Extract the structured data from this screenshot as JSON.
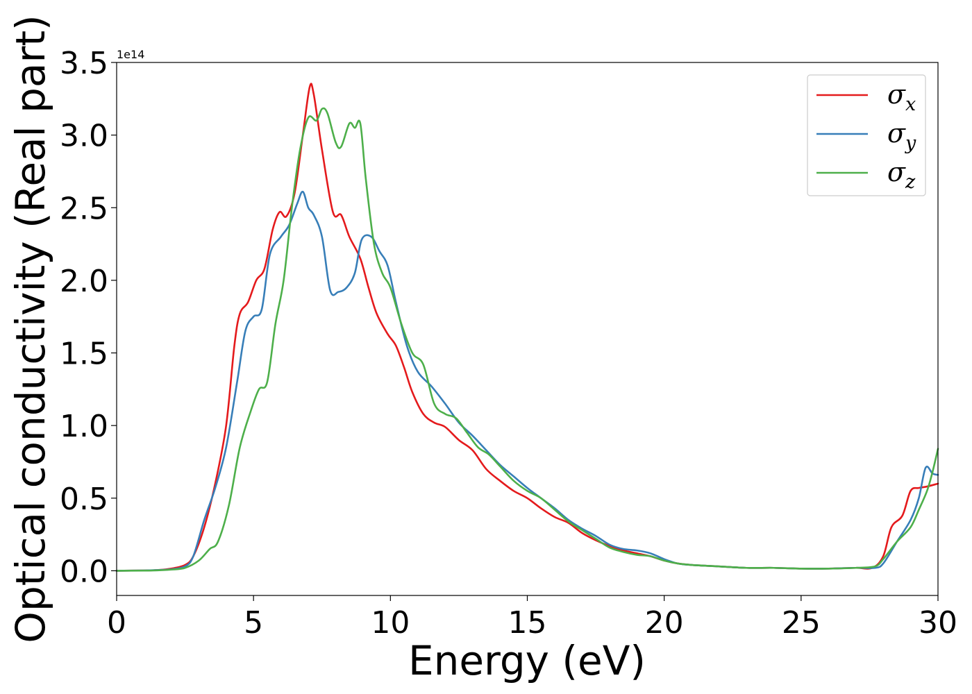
{
  "chart_data": {
    "type": "line",
    "title": "",
    "xlabel": "Energy (eV)",
    "ylabel": "Optical conductivity (Real part)",
    "y_scale_label": "1e14",
    "xlim": [
      0,
      30
    ],
    "ylim": [
      -0.17,
      3.5
    ],
    "xticks": [
      0,
      5,
      10,
      15,
      20,
      25,
      30
    ],
    "xtick_labels": [
      "0",
      "5",
      "10",
      "15",
      "20",
      "25",
      "30"
    ],
    "yticks": [
      0.0,
      0.5,
      1.0,
      1.5,
      2.0,
      2.5,
      3.0,
      3.5
    ],
    "ytick_labels": [
      "0.0",
      "0.5",
      "1.0",
      "1.5",
      "2.0",
      "2.5",
      "3.0",
      "3.5"
    ],
    "grid": false,
    "legend_position": "top-right",
    "series": [
      {
        "name": "σ",
        "subscript": "x",
        "color": "#e41a1c",
        "points": [
          [
            0,
            0
          ],
          [
            1,
            0.002
          ],
          [
            1.5,
            0.005
          ],
          [
            2,
            0.015
          ],
          [
            2.5,
            0.04
          ],
          [
            2.8,
            0.1
          ],
          [
            3.2,
            0.3
          ],
          [
            3.6,
            0.6
          ],
          [
            4,
            1.0
          ],
          [
            4.3,
            1.55
          ],
          [
            4.5,
            1.77
          ],
          [
            4.8,
            1.85
          ],
          [
            5.1,
            2.0
          ],
          [
            5.4,
            2.08
          ],
          [
            5.7,
            2.35
          ],
          [
            5.95,
            2.47
          ],
          [
            6.2,
            2.44
          ],
          [
            6.5,
            2.6
          ],
          [
            6.8,
            3.0
          ],
          [
            7.05,
            3.33
          ],
          [
            7.2,
            3.28
          ],
          [
            7.5,
            2.9
          ],
          [
            7.9,
            2.47
          ],
          [
            8.2,
            2.45
          ],
          [
            8.5,
            2.3
          ],
          [
            8.9,
            2.15
          ],
          [
            9.2,
            1.95
          ],
          [
            9.5,
            1.77
          ],
          [
            9.9,
            1.63
          ],
          [
            10.2,
            1.55
          ],
          [
            10.5,
            1.4
          ],
          [
            10.8,
            1.23
          ],
          [
            11.2,
            1.08
          ],
          [
            11.6,
            1.02
          ],
          [
            12,
            0.99
          ],
          [
            12.5,
            0.9
          ],
          [
            13,
            0.83
          ],
          [
            13.5,
            0.7
          ],
          [
            14,
            0.62
          ],
          [
            14.5,
            0.55
          ],
          [
            15,
            0.5
          ],
          [
            15.5,
            0.43
          ],
          [
            16,
            0.37
          ],
          [
            16.5,
            0.33
          ],
          [
            17,
            0.26
          ],
          [
            17.5,
            0.21
          ],
          [
            18,
            0.17
          ],
          [
            18.5,
            0.14
          ],
          [
            19,
            0.12
          ],
          [
            19.5,
            0.1
          ],
          [
            20,
            0.07
          ],
          [
            20.5,
            0.05
          ],
          [
            21,
            0.04
          ],
          [
            22,
            0.03
          ],
          [
            23,
            0.02
          ],
          [
            24,
            0.02
          ],
          [
            25,
            0.015
          ],
          [
            26,
            0.015
          ],
          [
            27,
            0.02
          ],
          [
            27.6,
            0.02
          ],
          [
            28,
            0.1
          ],
          [
            28.3,
            0.3
          ],
          [
            28.7,
            0.38
          ],
          [
            29,
            0.55
          ],
          [
            29.3,
            0.57
          ],
          [
            29.6,
            0.58
          ],
          [
            30,
            0.6
          ]
        ]
      },
      {
        "name": "σ",
        "subscript": "y",
        "color": "#377eb8",
        "points": [
          [
            0,
            0
          ],
          [
            1,
            0.002
          ],
          [
            1.5,
            0.005
          ],
          [
            2,
            0.01
          ],
          [
            2.5,
            0.03
          ],
          [
            2.8,
            0.1
          ],
          [
            3.2,
            0.35
          ],
          [
            3.6,
            0.57
          ],
          [
            4,
            0.85
          ],
          [
            4.4,
            1.3
          ],
          [
            4.7,
            1.65
          ],
          [
            5,
            1.75
          ],
          [
            5.3,
            1.8
          ],
          [
            5.6,
            2.18
          ],
          [
            6,
            2.3
          ],
          [
            6.3,
            2.38
          ],
          [
            6.6,
            2.53
          ],
          [
            6.8,
            2.61
          ],
          [
            7,
            2.5
          ],
          [
            7.2,
            2.45
          ],
          [
            7.5,
            2.3
          ],
          [
            7.8,
            1.93
          ],
          [
            8.1,
            1.92
          ],
          [
            8.4,
            1.95
          ],
          [
            8.7,
            2.05
          ],
          [
            8.95,
            2.28
          ],
          [
            9.3,
            2.3
          ],
          [
            9.6,
            2.2
          ],
          [
            9.9,
            2.1
          ],
          [
            10.2,
            1.85
          ],
          [
            10.6,
            1.55
          ],
          [
            11,
            1.37
          ],
          [
            11.5,
            1.27
          ],
          [
            12,
            1.15
          ],
          [
            12.5,
            1.02
          ],
          [
            13,
            0.93
          ],
          [
            13.5,
            0.83
          ],
          [
            14,
            0.73
          ],
          [
            14.5,
            0.65
          ],
          [
            15,
            0.57
          ],
          [
            15.5,
            0.5
          ],
          [
            16,
            0.43
          ],
          [
            16.5,
            0.35
          ],
          [
            17,
            0.29
          ],
          [
            17.5,
            0.24
          ],
          [
            18,
            0.18
          ],
          [
            18.5,
            0.15
          ],
          [
            19,
            0.14
          ],
          [
            19.5,
            0.12
          ],
          [
            20,
            0.08
          ],
          [
            20.5,
            0.05
          ],
          [
            21,
            0.04
          ],
          [
            22,
            0.03
          ],
          [
            23,
            0.02
          ],
          [
            24,
            0.02
          ],
          [
            25,
            0.015
          ],
          [
            26,
            0.015
          ],
          [
            27,
            0.02
          ],
          [
            27.7,
            0.02
          ],
          [
            28,
            0.05
          ],
          [
            28.5,
            0.2
          ],
          [
            29,
            0.35
          ],
          [
            29.3,
            0.5
          ],
          [
            29.55,
            0.71
          ],
          [
            29.8,
            0.67
          ],
          [
            30,
            0.66
          ]
        ]
      },
      {
        "name": "σ",
        "subscript": "z",
        "color": "#4daf4a",
        "points": [
          [
            0,
            0
          ],
          [
            1,
            0.001
          ],
          [
            1.5,
            0.003
          ],
          [
            2,
            0.008
          ],
          [
            2.5,
            0.02
          ],
          [
            3,
            0.07
          ],
          [
            3.4,
            0.15
          ],
          [
            3.7,
            0.2
          ],
          [
            4.1,
            0.45
          ],
          [
            4.5,
            0.85
          ],
          [
            4.9,
            1.1
          ],
          [
            5.2,
            1.25
          ],
          [
            5.5,
            1.3
          ],
          [
            5.8,
            1.7
          ],
          [
            6.1,
            2.0
          ],
          [
            6.4,
            2.5
          ],
          [
            6.7,
            2.9
          ],
          [
            7,
            3.12
          ],
          [
            7.3,
            3.1
          ],
          [
            7.5,
            3.18
          ],
          [
            7.7,
            3.15
          ],
          [
            8,
            2.95
          ],
          [
            8.2,
            2.92
          ],
          [
            8.5,
            3.08
          ],
          [
            8.7,
            3.05
          ],
          [
            8.9,
            3.08
          ],
          [
            9.1,
            2.7
          ],
          [
            9.4,
            2.25
          ],
          [
            9.7,
            2.05
          ],
          [
            10,
            1.95
          ],
          [
            10.4,
            1.7
          ],
          [
            10.8,
            1.5
          ],
          [
            11.2,
            1.42
          ],
          [
            11.6,
            1.15
          ],
          [
            12,
            1.08
          ],
          [
            12.4,
            1.05
          ],
          [
            12.8,
            0.95
          ],
          [
            13.2,
            0.85
          ],
          [
            13.6,
            0.8
          ],
          [
            14,
            0.72
          ],
          [
            14.5,
            0.62
          ],
          [
            15,
            0.55
          ],
          [
            15.5,
            0.5
          ],
          [
            16,
            0.42
          ],
          [
            16.5,
            0.34
          ],
          [
            17,
            0.28
          ],
          [
            17.5,
            0.22
          ],
          [
            18,
            0.16
          ],
          [
            18.5,
            0.13
          ],
          [
            19,
            0.11
          ],
          [
            19.5,
            0.1
          ],
          [
            20,
            0.07
          ],
          [
            20.5,
            0.05
          ],
          [
            21,
            0.04
          ],
          [
            22,
            0.03
          ],
          [
            23,
            0.02
          ],
          [
            24,
            0.02
          ],
          [
            25,
            0.015
          ],
          [
            26,
            0.015
          ],
          [
            27,
            0.02
          ],
          [
            27.7,
            0.03
          ],
          [
            28,
            0.08
          ],
          [
            28.5,
            0.2
          ],
          [
            29,
            0.3
          ],
          [
            29.3,
            0.42
          ],
          [
            29.6,
            0.55
          ],
          [
            29.8,
            0.68
          ],
          [
            30,
            0.84
          ]
        ]
      }
    ]
  }
}
